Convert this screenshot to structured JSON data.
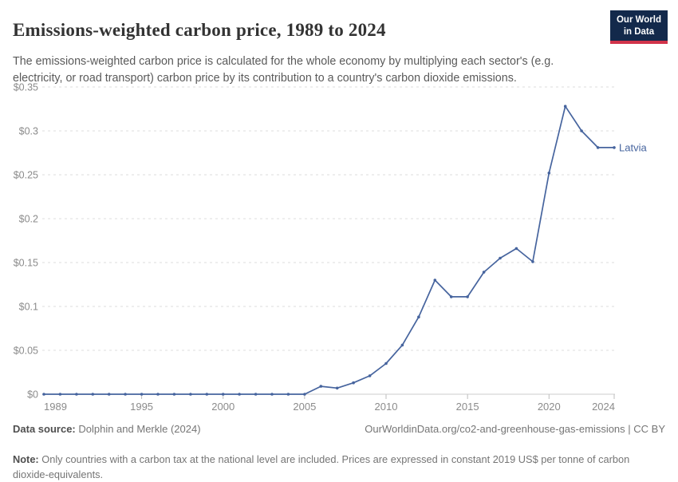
{
  "header": {
    "title": "Emissions-weighted carbon price, 1989 to 2024",
    "subtitle": "The emissions-weighted carbon price is calculated for the whole economy by multiplying each sector's (e.g. electricity, or road transport) carbon price by its contribution to a country's carbon dioxide emissions.",
    "logo": {
      "line1": "Our World",
      "line2": "in Data",
      "bg_color": "#13294b",
      "accent_color": "#d1334a"
    }
  },
  "chart_data": {
    "type": "line",
    "title": "Emissions-weighted carbon price, 1989 to 2024",
    "xlabel": "",
    "ylabel": "",
    "xlim": [
      1989,
      2024
    ],
    "ylim": [
      0,
      0.35
    ],
    "grid": "horizontal-dashed",
    "legend_position": "end-of-line",
    "x": [
      1989,
      1990,
      1991,
      1992,
      1993,
      1994,
      1995,
      1996,
      1997,
      1998,
      1999,
      2000,
      2001,
      2002,
      2003,
      2004,
      2005,
      2006,
      2007,
      2008,
      2009,
      2010,
      2011,
      2012,
      2013,
      2014,
      2015,
      2016,
      2017,
      2018,
      2019,
      2020,
      2021,
      2022,
      2023,
      2024
    ],
    "series": [
      {
        "name": "Latvia",
        "color": "#46649e",
        "values": [
          0,
          0,
          0,
          0,
          0,
          0,
          0,
          0,
          0,
          0,
          0,
          0,
          0,
          0,
          0,
          0,
          0,
          0.009,
          0.007,
          0.013,
          0.021,
          0.035,
          0.056,
          0.088,
          0.13,
          0.111,
          0.111,
          0.139,
          0.155,
          0.166,
          0.151,
          0.252,
          0.328,
          0.3,
          0.281,
          0.281
        ]
      }
    ],
    "x_ticks": [
      1989,
      1995,
      2000,
      2005,
      2010,
      2015,
      2020,
      2024
    ],
    "y_ticks": [
      0,
      0.05,
      0.1,
      0.15,
      0.2,
      0.25,
      0.3,
      0.35
    ],
    "y_tick_labels": [
      "$0",
      "$0.05",
      "$0.1",
      "$0.15",
      "$0.2",
      "$0.25",
      "$0.3",
      "$0.35"
    ],
    "axis_colors": {
      "tick_label": "#8b8b8b",
      "gridline": "#dcdcdc",
      "axis_line": "#cdcdcd",
      "tick_mark": "#bdbdbd"
    }
  },
  "footer": {
    "source_label": "Data source:",
    "source_text": " Dolphin and Merkle (2024)",
    "link_text": "OurWorldinData.org/co2-and-greenhouse-gas-emissions | CC BY",
    "note_label": "Note:",
    "note_text": " Only countries with a carbon tax at the national level are included. Prices are expressed in constant 2019 US$ per tonne of carbon dioxide-equivalents."
  }
}
